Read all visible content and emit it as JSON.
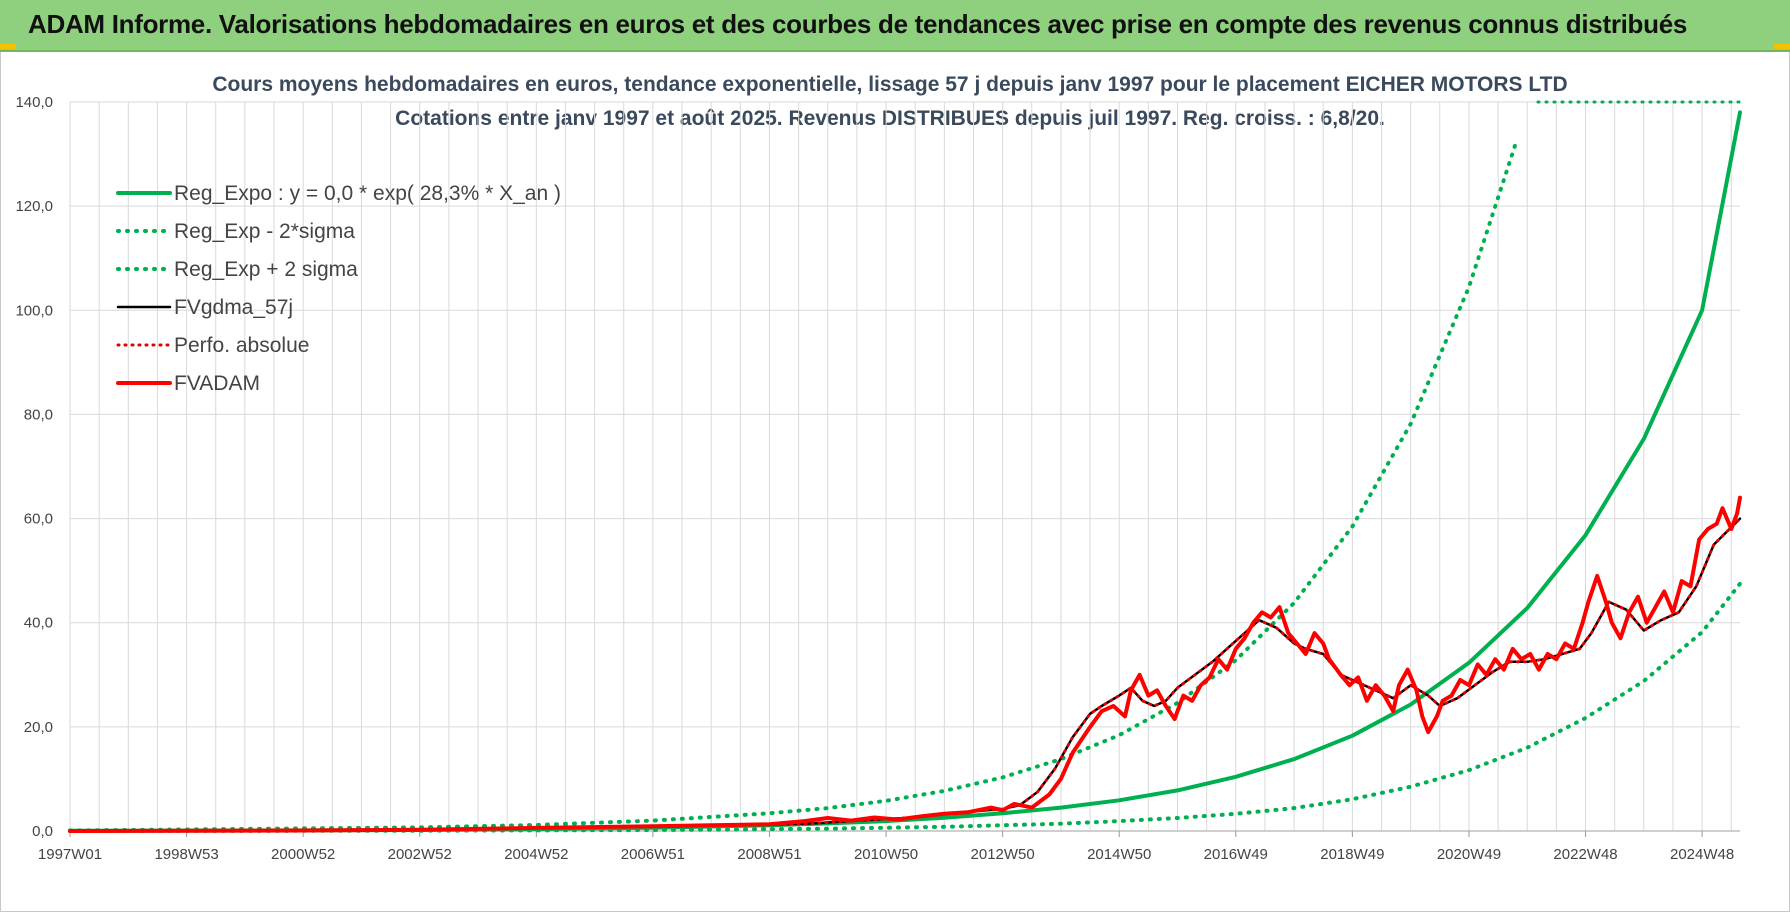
{
  "banner": {
    "title": "ADAM Informe. Valorisations hebdomadaires en euros et des courbes de tendances avec prise en compte des revenus connus distribués",
    "background": "#8fd07f"
  },
  "chart_data": {
    "type": "line",
    "title_line1": "Cours moyens hebdomadaires en euros, tendance exponentielle, lissage 57 j depuis janv 1997 pour le placement EICHER MOTORS LTD",
    "title_line2": "Cotations entre janv 1997 et août 2025.  Revenus DISTRIBUES depuis juil 1997.  Reg. croiss. : 6,8/20.",
    "x_tick_labels": [
      "1997W01",
      "1998W53",
      "2000W52",
      "2002W52",
      "2004W52",
      "2006W51",
      "2008W51",
      "2010W50",
      "2012W50",
      "2014W50",
      "2016W49",
      "2018W49",
      "2020W49",
      "2022W48",
      "2024W48"
    ],
    "x_tick_years": [
      1997.0,
      1999.0,
      2001.0,
      2003.0,
      2005.0,
      2007.0,
      2009.0,
      2011.0,
      2013.0,
      2015.0,
      2017.0,
      2019.0,
      2021.0,
      2023.0,
      2025.0
    ],
    "y_tick_labels": [
      "0,0",
      "20,0",
      "40,0",
      "60,0",
      "80,0",
      "100,0",
      "120,0",
      "140,0"
    ],
    "ylim": [
      0,
      140
    ],
    "xlim": [
      1997.0,
      2025.65
    ],
    "grid": true,
    "legend_position": "top-left",
    "series": [
      {
        "name": "Reg_Expo : y = 0,0 * exp( 28,3% *  X_an )",
        "color": "#00b050",
        "style": "solid",
        "width": 4,
        "x": [
          1997.0,
          2000.0,
          2003.0,
          2005.0,
          2007.0,
          2009.0,
          2010.0,
          2011.0,
          2012.0,
          2013.0,
          2014.0,
          2015.0,
          2016.0,
          2017.0,
          2018.0,
          2019.0,
          2020.0,
          2021.0,
          2022.0,
          2023.0,
          2024.0,
          2025.0,
          2025.65
        ],
        "y": [
          0.04,
          0.09,
          0.2,
          0.36,
          0.63,
          1.1,
          1.45,
          1.9,
          2.55,
          3.4,
          4.5,
          5.9,
          7.8,
          10.4,
          13.8,
          18.3,
          24.3,
          32.3,
          42.8,
          56.8,
          75.3,
          100.0,
          138.0
        ]
      },
      {
        "name": "Reg_Exp - 2*sigma",
        "color": "#00b050",
        "style": "dotted",
        "width": 4,
        "x": [
          1997.0,
          2003.0,
          2007.0,
          2010.0,
          2012.0,
          2014.0,
          2015.0,
          2016.0,
          2017.0,
          2018.0,
          2019.0,
          2020.0,
          2021.0,
          2022.0,
          2023.0,
          2024.0,
          2025.0,
          2025.65
        ],
        "y": [
          0.0,
          0.06,
          0.2,
          0.45,
          0.8,
          1.4,
          1.9,
          2.5,
          3.3,
          4.4,
          6.1,
          8.5,
          11.7,
          16.0,
          21.7,
          28.8,
          38.2,
          47.5
        ]
      },
      {
        "name": "Reg_Exp + 2 sigma",
        "color": "#00b050",
        "style": "dotted",
        "width": 4,
        "x": [
          1997.0,
          2003.0,
          2005.0,
          2007.0,
          2009.0,
          2010.0,
          2011.0,
          2012.0,
          2013.0,
          2014.0,
          2015.0,
          2016.0,
          2017.0,
          2018.0,
          2019.0,
          2020.0,
          2021.0,
          2021.8
        ],
        "y": [
          0.1,
          0.7,
          1.15,
          2.0,
          3.4,
          4.4,
          5.8,
          7.7,
          10.3,
          13.8,
          18.4,
          24.6,
          32.8,
          43.8,
          58.5,
          78.2,
          104.5,
          132.0
        ]
      },
      {
        "name": "FVgdma_57j",
        "color": "#000000",
        "style": "solid",
        "width": 2.5,
        "x": [
          1997.0,
          2001.0,
          2003.0,
          2005.0,
          2007.0,
          2009.0,
          2009.8,
          2010.5,
          2011.0,
          2011.5,
          2012.0,
          2012.5,
          2013.0,
          2013.3,
          2013.6,
          2013.9,
          2014.2,
          2014.5,
          2014.7,
          2015.0,
          2015.2,
          2015.4,
          2015.6,
          2015.8,
          2016.0,
          2016.3,
          2016.6,
          2016.9,
          2017.2,
          2017.4,
          2017.7,
          2018.0,
          2018.2,
          2018.5,
          2018.8,
          2019.1,
          2019.4,
          2019.7,
          2020.0,
          2020.3,
          2020.5,
          2020.8,
          2021.1,
          2021.4,
          2021.7,
          2022.0,
          2022.3,
          2022.6,
          2022.9,
          2023.1,
          2023.4,
          2023.7,
          2024.0,
          2024.3,
          2024.6,
          2024.9,
          2025.2,
          2025.65
        ],
        "y": [
          0.0,
          0.1,
          0.25,
          0.6,
          0.8,
          1.2,
          1.5,
          2.0,
          2.3,
          2.6,
          3.2,
          3.8,
          4.2,
          5.0,
          7.5,
          12.0,
          18.0,
          22.5,
          24.0,
          26.0,
          27.5,
          25.0,
          24.0,
          25.0,
          27.5,
          30.0,
          32.5,
          35.5,
          38.5,
          40.5,
          39.0,
          36.0,
          35.0,
          34.0,
          30.0,
          28.5,
          27.0,
          25.5,
          28.0,
          26.0,
          24.0,
          25.5,
          28.0,
          30.5,
          32.5,
          32.5,
          33.0,
          34.0,
          35.0,
          38.0,
          44.0,
          42.5,
          38.5,
          40.5,
          42.0,
          47.0,
          55.0,
          60.0
        ]
      },
      {
        "name": "Perfo. absolue",
        "color": "#e00000",
        "style": "dotted",
        "width": 3,
        "x": [
          1997.0,
          2001.0,
          2003.0,
          2005.0,
          2007.0,
          2009.0,
          2009.8,
          2010.5,
          2011.0,
          2011.5,
          2012.0,
          2012.5,
          2013.0,
          2013.3,
          2013.6,
          2013.9,
          2014.2,
          2014.5,
          2014.7,
          2015.0,
          2015.2,
          2015.4,
          2015.6,
          2015.8,
          2016.0,
          2016.3,
          2016.6,
          2016.9,
          2017.2,
          2017.4,
          2017.7,
          2018.0,
          2018.2,
          2018.5,
          2018.8,
          2019.1,
          2019.4,
          2019.7,
          2020.0,
          2020.3,
          2020.5,
          2020.8,
          2021.1,
          2021.4,
          2021.7,
          2022.0,
          2022.3,
          2022.6,
          2022.9,
          2023.1,
          2023.4,
          2023.7,
          2024.0,
          2024.3,
          2024.6,
          2024.9,
          2025.2,
          2025.65
        ],
        "y": [
          0.0,
          0.1,
          0.25,
          0.6,
          0.8,
          1.2,
          1.5,
          2.0,
          2.3,
          2.6,
          3.2,
          3.8,
          4.2,
          5.0,
          7.5,
          12.0,
          18.0,
          22.5,
          24.0,
          26.0,
          27.5,
          25.0,
          24.0,
          25.0,
          27.5,
          30.0,
          32.5,
          35.5,
          38.5,
          40.5,
          39.0,
          36.0,
          35.0,
          34.0,
          30.0,
          28.5,
          27.0,
          25.5,
          28.0,
          26.0,
          24.0,
          25.5,
          28.0,
          30.5,
          32.5,
          32.5,
          33.0,
          34.0,
          35.0,
          38.0,
          44.0,
          42.5,
          38.5,
          40.5,
          42.0,
          47.0,
          55.0,
          60.0
        ]
      },
      {
        "name": "FVADAM",
        "color": "#ff0000",
        "style": "solid",
        "width": 4,
        "x": [
          1997.0,
          2001.0,
          2003.0,
          2005.0,
          2007.0,
          2009.0,
          2009.6,
          2010.0,
          2010.4,
          2010.8,
          2011.2,
          2011.6,
          2012.0,
          2012.4,
          2012.8,
          2013.0,
          2013.2,
          2013.5,
          2013.8,
          2014.0,
          2014.2,
          2014.5,
          2014.7,
          2014.9,
          2015.1,
          2015.2,
          2015.35,
          2015.5,
          2015.65,
          2015.8,
          2015.95,
          2016.1,
          2016.25,
          2016.4,
          2016.55,
          2016.7,
          2016.85,
          2017.0,
          2017.15,
          2017.3,
          2017.45,
          2017.6,
          2017.75,
          2017.9,
          2018.05,
          2018.2,
          2018.35,
          2018.5,
          2018.6,
          2018.8,
          2018.95,
          2019.1,
          2019.25,
          2019.4,
          2019.55,
          2019.7,
          2019.8,
          2019.95,
          2020.1,
          2020.2,
          2020.3,
          2020.45,
          2020.55,
          2020.7,
          2020.85,
          2021.0,
          2021.15,
          2021.3,
          2021.45,
          2021.6,
          2021.75,
          2021.9,
          2022.05,
          2022.2,
          2022.35,
          2022.5,
          2022.65,
          2022.8,
          2022.95,
          2023.05,
          2023.2,
          2023.35,
          2023.45,
          2023.6,
          2023.75,
          2023.9,
          2024.05,
          2024.2,
          2024.35,
          2024.5,
          2024.65,
          2024.8,
          2024.95,
          2025.1,
          2025.25,
          2025.35,
          2025.5,
          2025.6,
          2025.65
        ],
        "y": [
          0.0,
          0.1,
          0.25,
          0.6,
          0.9,
          1.3,
          1.9,
          2.5,
          2.0,
          2.6,
          2.2,
          2.8,
          3.3,
          3.6,
          4.5,
          4.0,
          5.2,
          4.5,
          7.0,
          10.0,
          15.0,
          20.0,
          23.0,
          24.0,
          22.0,
          27.0,
          30.0,
          26.0,
          27.0,
          24.0,
          21.5,
          26.0,
          25.0,
          28.0,
          29.5,
          33.0,
          31.0,
          35.0,
          37.0,
          40.0,
          42.0,
          41.0,
          43.0,
          38.0,
          36.0,
          34.0,
          38.0,
          36.0,
          33.0,
          30.0,
          28.0,
          29.5,
          25.0,
          28.0,
          26.0,
          23.0,
          28.0,
          31.0,
          27.0,
          22.0,
          19.0,
          22.0,
          25.0,
          26.0,
          29.0,
          28.0,
          32.0,
          30.0,
          33.0,
          31.0,
          35.0,
          33.0,
          34.0,
          31.0,
          34.0,
          33.0,
          36.0,
          35.0,
          40.0,
          44.0,
          49.0,
          44.0,
          40.0,
          37.0,
          42.0,
          45.0,
          40.0,
          43.0,
          46.0,
          42.0,
          48.0,
          47.0,
          56.0,
          58.0,
          59.0,
          62.0,
          58.0,
          61.0,
          64.0
        ]
      }
    ]
  }
}
